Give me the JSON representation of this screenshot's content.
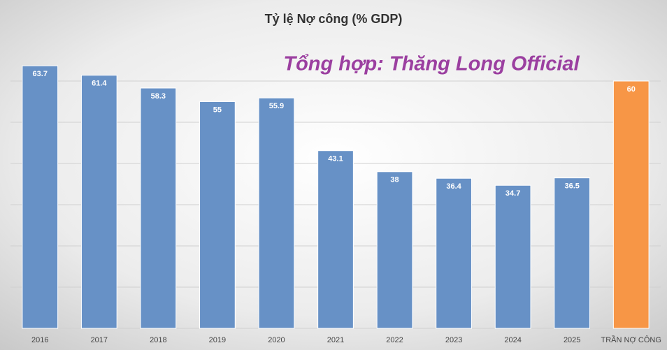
{
  "chart_data": {
    "type": "bar",
    "title": "Tỷ lệ Nợ công (% GDP)",
    "annotation": "Tổng hợp: Thăng Long Official",
    "categories": [
      "2016",
      "2017",
      "2018",
      "2019",
      "2020",
      "2021",
      "2022",
      "2023",
      "2024",
      "2025",
      "TRẦN NỢ CÔNG"
    ],
    "values": [
      63.7,
      61.4,
      58.3,
      55,
      55.9,
      43.1,
      38,
      36.4,
      34.7,
      36.5,
      60
    ],
    "colors": [
      "#6791c6",
      "#6791c6",
      "#6791c6",
      "#6791c6",
      "#6791c6",
      "#6791c6",
      "#6791c6",
      "#6791c6",
      "#6791c6",
      "#6791c6",
      "#f79646"
    ],
    "ylim": [
      0,
      70
    ],
    "yticks": [
      0,
      10,
      20,
      30,
      40,
      50,
      60
    ],
    "grid": true
  }
}
